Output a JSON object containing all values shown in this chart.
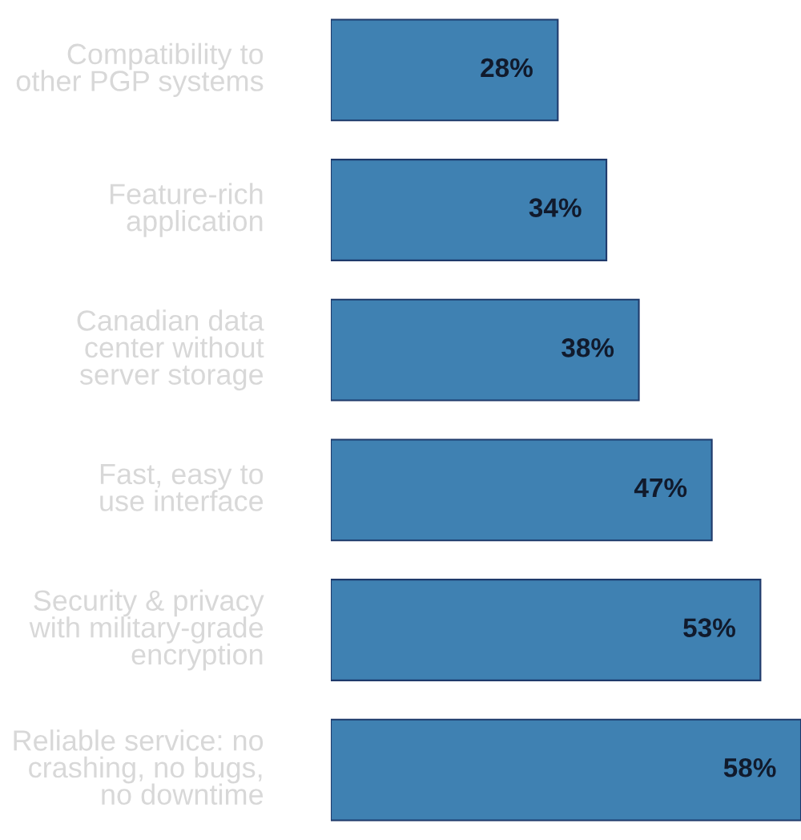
{
  "chart_data": {
    "type": "bar",
    "orientation": "horizontal",
    "categories": [
      "Compatibility to\nother PGP systems",
      "Feature-rich\napplication",
      "Canadian data\ncenter without\nserver storage",
      "Fast, easy to\nuse interface",
      "Security & privacy\nwith military-grade\nencryption",
      "Reliable service: no\ncrashing, no bugs,\nno downtime"
    ],
    "values": [
      28,
      34,
      38,
      47,
      53,
      58
    ],
    "value_labels": [
      "28%",
      "34%",
      "38%",
      "47%",
      "53%",
      "58%"
    ],
    "color": "#3f81b2",
    "tick_labels": "y"
  }
}
